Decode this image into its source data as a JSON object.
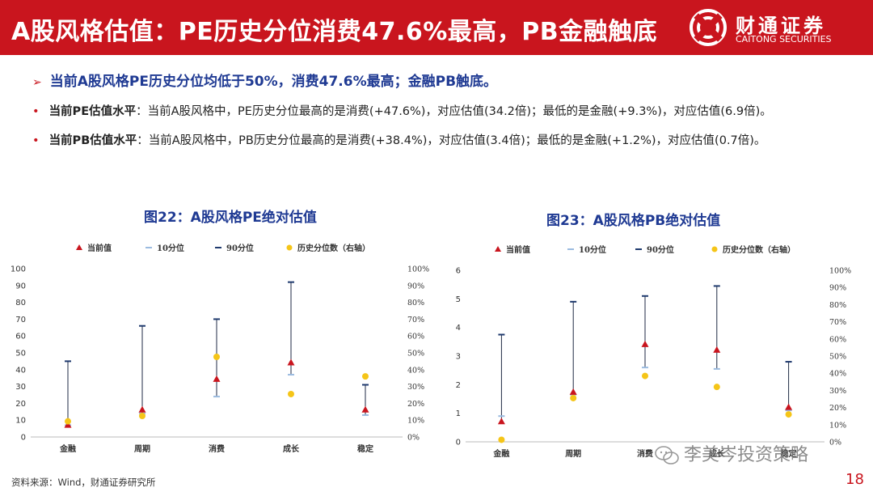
{
  "header": {
    "title": "A股风格估值：PE历史分位消费47.6%最高，PB金融触底",
    "logo_cn": "财通证券",
    "logo_en": "CAITONG SECURITIES",
    "bg_color": "#c9151e"
  },
  "summary": "当前A股风格PE历史分位均低于50%，消费47.6%最高；金融PB触底。",
  "bullets": [
    {
      "label": "当前PE估值水平",
      "text": "：当前A股风格中，PE历史分位最高的是消费(+47.6%)，对应估值(34.2倍)；最低的是金融(+9.3%)，对应估值(6.9倍)。"
    },
    {
      "label": "当前PB估值水平",
      "text": "：当前A股风格中，PB历史分位最高的是消费(+38.4%)，对应估值(3.4倍)；最低的是金融(+1.2%)，对应估值(0.7倍)。"
    }
  ],
  "chart_data": [
    {
      "type": "scatter",
      "title": "图22：A股风格PE绝对估值",
      "legend": [
        "当前值",
        "10分位",
        "90分位",
        "历史分位数（右轴）"
      ],
      "legend_position": "top",
      "categories": [
        "金融",
        "周期",
        "消费",
        "成长",
        "稳定"
      ],
      "series": [
        {
          "name": "当前值",
          "values": [
            6.9,
            16,
            34.2,
            44,
            16
          ],
          "axis": "left"
        },
        {
          "name": "10分位",
          "values": [
            7,
            14,
            24,
            37,
            13
          ],
          "axis": "left"
        },
        {
          "name": "90分位",
          "values": [
            45,
            66,
            70,
            92,
            31
          ],
          "axis": "left"
        },
        {
          "name": "历史分位数（右轴）",
          "values": [
            9.3,
            12.5,
            47.6,
            25.5,
            36
          ],
          "axis": "right"
        }
      ],
      "ylim": [
        0,
        100
      ],
      "yticks": [
        "0",
        "10",
        "20",
        "30",
        "40",
        "50",
        "60",
        "70",
        "80",
        "90",
        "100"
      ],
      "y2lim": [
        0,
        100
      ],
      "y2ticks": [
        "0%",
        "10%",
        "20%",
        "30%",
        "40%",
        "50%",
        "60%",
        "70%",
        "80%",
        "90%",
        "100%"
      ],
      "grid": false
    },
    {
      "type": "scatter",
      "title": "图23：A股风格PB绝对估值",
      "legend": [
        "当前值",
        "10分位",
        "90分位",
        "历史分位数（右轴）"
      ],
      "legend_position": "top",
      "categories": [
        "金融",
        "周期",
        "消费",
        "成长",
        "稳定"
      ],
      "series": [
        {
          "name": "当前值",
          "values": [
            0.7,
            1.73,
            3.4,
            3.2,
            1.2
          ],
          "axis": "left"
        },
        {
          "name": "10分位",
          "values": [
            0.9,
            1.65,
            2.6,
            2.55,
            1.1
          ],
          "axis": "left"
        },
        {
          "name": "90分位",
          "values": [
            3.75,
            4.9,
            5.1,
            5.45,
            2.8
          ],
          "axis": "left"
        },
        {
          "name": "历史分位数（右轴）",
          "values": [
            1.2,
            25.5,
            38.4,
            32,
            16
          ],
          "axis": "right"
        }
      ],
      "ylim": [
        0,
        6
      ],
      "yticks": [
        "0",
        "1",
        "2",
        "3",
        "4",
        "5",
        "6"
      ],
      "y2lim": [
        0,
        100
      ],
      "y2ticks": [
        "0%",
        "10%",
        "20%",
        "30%",
        "40%",
        "50%",
        "60%",
        "70%",
        "80%",
        "90%",
        "100%"
      ],
      "grid": false
    }
  ],
  "colors": {
    "current": "#c9151e",
    "p10": "#9bbbe0",
    "p90": "#1f3a6e",
    "percentile": "#f5c518",
    "accent_blue": "#1f3a93"
  },
  "source": "资料来源：Wind，财通证券研究所",
  "page_number": "18",
  "watermark": "李美岑投资策略"
}
